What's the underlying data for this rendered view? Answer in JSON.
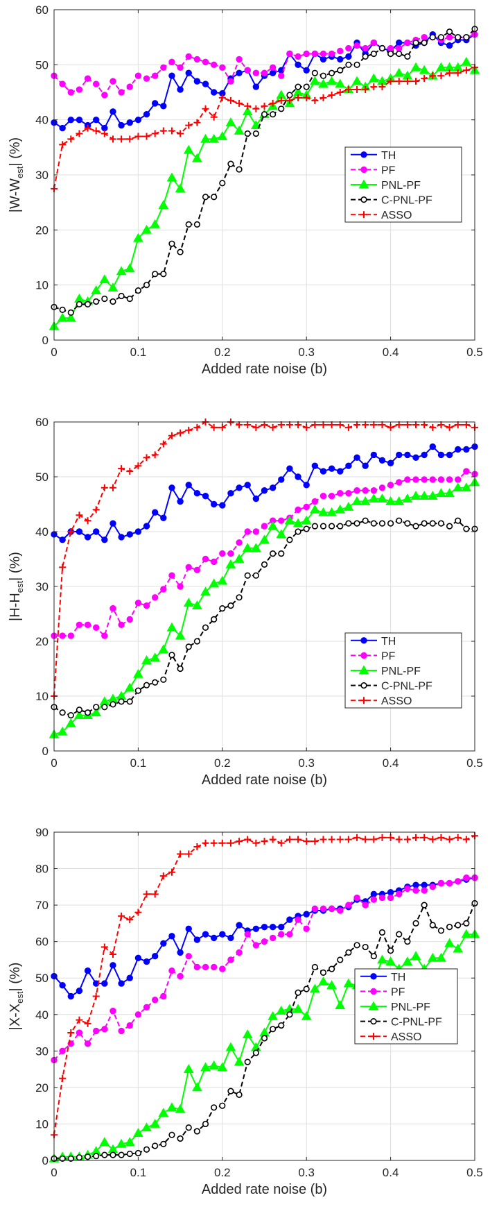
{
  "chart_data": [
    {
      "type": "line",
      "ylabel_main": "|W-W",
      "ylabel_sub": "est",
      "ylabel_tail": "| (%)",
      "xlabel": "Added rate noise (b)",
      "xlim": [
        0,
        0.5
      ],
      "ylim": [
        0,
        60
      ],
      "xticks": [
        "0",
        "0.1",
        "0.2",
        "0.3",
        "0.4",
        "0.5"
      ],
      "yticks": [
        "0",
        "10",
        "20",
        "30",
        "40",
        "50",
        "60"
      ],
      "legend_placement": "center-right",
      "grid": true,
      "x": [
        0,
        0.01,
        0.02,
        0.03,
        0.04,
        0.05,
        0.06,
        0.07,
        0.08,
        0.09,
        0.1,
        0.11,
        0.12,
        0.13,
        0.14,
        0.15,
        0.16,
        0.17,
        0.18,
        0.19,
        0.2,
        0.21,
        0.22,
        0.23,
        0.24,
        0.25,
        0.26,
        0.27,
        0.28,
        0.29,
        0.3,
        0.31,
        0.32,
        0.33,
        0.34,
        0.35,
        0.36,
        0.37,
        0.38,
        0.39,
        0.4,
        0.41,
        0.42,
        0.43,
        0.44,
        0.45,
        0.46,
        0.47,
        0.48,
        0.49,
        0.5
      ],
      "series": [
        {
          "name": "TH",
          "color": "#0000ff",
          "dash": "solid",
          "marker": "dot",
          "values": [
            39.5,
            38.5,
            40,
            40,
            39,
            40,
            38.5,
            41.5,
            39,
            39.5,
            40,
            41,
            43,
            42.5,
            48,
            45.5,
            48.5,
            47,
            46.5,
            45,
            44.8,
            47.5,
            48.5,
            49,
            46,
            48,
            48.5,
            49,
            52,
            50,
            49,
            52,
            51,
            51.5,
            51,
            51.5,
            54,
            52,
            54,
            53,
            52.5,
            54,
            54,
            53.5,
            54,
            55.5,
            54,
            53.5,
            54.5,
            54.5,
            55.5
          ]
        },
        {
          "name": "PF",
          "color": "#ff00ff",
          "dash": "dashed",
          "marker": "dot",
          "values": [
            48,
            46.5,
            45,
            45.5,
            47.5,
            46.5,
            44.5,
            47,
            45,
            46,
            48,
            47.5,
            48,
            49.5,
            50.5,
            49.5,
            51.5,
            51,
            50.5,
            50,
            49.5,
            47,
            51,
            49,
            48.5,
            48.5,
            49.5,
            48,
            52,
            51.5,
            52,
            52,
            52,
            52,
            52.5,
            53,
            53.5,
            53,
            54,
            53,
            53,
            53,
            54,
            54.5,
            55,
            55,
            54.5,
            55,
            55,
            55,
            55.5
          ]
        },
        {
          "name": "PNL-PF",
          "color": "#00ff00",
          "dash": "solid",
          "marker": "triangle",
          "values": [
            2.5,
            4,
            4,
            7.5,
            7,
            9,
            11,
            9.5,
            12.5,
            13,
            18.5,
            20,
            21,
            24.5,
            29.5,
            27.5,
            34.5,
            33,
            36.5,
            36.5,
            37,
            39.5,
            38,
            41.5,
            39,
            41,
            42.5,
            44.5,
            43,
            45,
            44.5,
            47,
            46.5,
            47,
            46.5,
            45.5,
            47,
            46,
            47.5,
            47,
            47.5,
            48.5,
            48,
            49.5,
            49,
            48,
            49.5,
            49.5,
            49.5,
            50.5,
            49
          ]
        },
        {
          "name": "C-PNL-PF",
          "color": "#000000",
          "dash": "dashed",
          "marker": "circle",
          "values": [
            6,
            5.5,
            5,
            6.5,
            6.5,
            7,
            7.5,
            7,
            8,
            7.5,
            9,
            10,
            12,
            12,
            17.5,
            16,
            21,
            21,
            26,
            26,
            28.5,
            32,
            31,
            37.5,
            37.5,
            41,
            41,
            42,
            44.5,
            46,
            46,
            48.5,
            48,
            48.5,
            49,
            50,
            50,
            51.5,
            52,
            53,
            52,
            52,
            51.5,
            54,
            54,
            55,
            55,
            56,
            55,
            55,
            56.5
          ]
        },
        {
          "name": "ASSO",
          "color": "#ff0000",
          "dash": "dashed",
          "marker": "plus",
          "values": [
            27.5,
            35.5,
            36.5,
            37.5,
            38.5,
            38,
            37.5,
            36.5,
            36.5,
            36.5,
            37,
            37,
            37.5,
            38,
            38,
            37.5,
            39,
            39.5,
            42,
            40.5,
            44,
            43.5,
            43,
            42.5,
            42,
            42.5,
            43,
            43.5,
            43.5,
            44,
            44,
            43.5,
            44,
            44.5,
            45,
            45.5,
            45.5,
            45.5,
            46,
            46,
            47,
            47,
            47,
            47,
            47.5,
            48,
            48,
            48.5,
            48.5,
            49,
            49.5
          ]
        }
      ]
    },
    {
      "type": "line",
      "ylabel_main": "|H-H",
      "ylabel_sub": "est",
      "ylabel_tail": "| (%)",
      "xlabel": "Added rate noise (b)",
      "xlim": [
        0,
        0.5
      ],
      "ylim": [
        0,
        60
      ],
      "xticks": [
        "0",
        "0.1",
        "0.2",
        "0.3",
        "0.4",
        "0.5"
      ],
      "yticks": [
        "0",
        "10",
        "20",
        "30",
        "40",
        "50",
        "60"
      ],
      "legend_placement": "lower-right",
      "grid": true,
      "x": [
        0,
        0.01,
        0.02,
        0.03,
        0.04,
        0.05,
        0.06,
        0.07,
        0.08,
        0.09,
        0.1,
        0.11,
        0.12,
        0.13,
        0.14,
        0.15,
        0.16,
        0.17,
        0.18,
        0.19,
        0.2,
        0.21,
        0.22,
        0.23,
        0.24,
        0.25,
        0.26,
        0.27,
        0.28,
        0.29,
        0.3,
        0.31,
        0.32,
        0.33,
        0.34,
        0.35,
        0.36,
        0.37,
        0.38,
        0.39,
        0.4,
        0.41,
        0.42,
        0.43,
        0.44,
        0.45,
        0.46,
        0.47,
        0.48,
        0.49,
        0.5
      ],
      "series": [
        {
          "name": "TH",
          "color": "#0000ff",
          "dash": "solid",
          "marker": "dot",
          "values": [
            39.5,
            38.5,
            40,
            40,
            39,
            40,
            38.5,
            41.5,
            39,
            39.5,
            40,
            41,
            43.5,
            42.5,
            48,
            45.5,
            48.5,
            47,
            46.5,
            45,
            44.8,
            47,
            48,
            48.5,
            46,
            47.5,
            48,
            49.5,
            51.5,
            50,
            48.5,
            52,
            51,
            51.5,
            51,
            52,
            53.5,
            52,
            54,
            53,
            52.5,
            54,
            54,
            53.5,
            54,
            55.5,
            54,
            54,
            55,
            55,
            55.5
          ]
        },
        {
          "name": "PF",
          "color": "#ff00ff",
          "dash": "dashed",
          "marker": "dot",
          "values": [
            21,
            21,
            21,
            23,
            23,
            22.5,
            21,
            26,
            23,
            24,
            27,
            26.5,
            28,
            29.5,
            32,
            30,
            33.5,
            33,
            35,
            34.5,
            36,
            36,
            38,
            40,
            40,
            41,
            42,
            42,
            42.5,
            44,
            44.5,
            45.5,
            46.5,
            46.5,
            47,
            47,
            47.5,
            47.5,
            47.5,
            48,
            48.5,
            49,
            49.5,
            49.5,
            49.5,
            49.5,
            49.5,
            49.5,
            49.5,
            51,
            50.5
          ]
        },
        {
          "name": "PNL-PF",
          "color": "#00ff00",
          "dash": "solid",
          "marker": "triangle",
          "values": [
            3,
            3.5,
            5,
            6.5,
            6.5,
            7,
            9,
            9.5,
            10,
            11.5,
            14,
            16.5,
            17,
            18.5,
            22.5,
            21,
            27,
            26.5,
            29,
            30.5,
            31,
            34,
            35,
            37,
            37,
            38.5,
            41,
            39.5,
            42,
            41.5,
            42,
            44,
            43.5,
            43.5,
            44,
            44.5,
            45.5,
            45.5,
            46,
            46,
            45.5,
            45.5,
            46,
            46.5,
            46.5,
            46.5,
            47,
            47,
            48,
            48,
            49
          ]
        },
        {
          "name": "C-PNL-PF",
          "color": "#000000",
          "dash": "dashed",
          "marker": "circle",
          "values": [
            8,
            7,
            6.5,
            7.5,
            7,
            8,
            8,
            8.5,
            9,
            9,
            11,
            12,
            12.5,
            13,
            17.5,
            15,
            19,
            20,
            22.5,
            24,
            26,
            26.5,
            28,
            32,
            32,
            34,
            36,
            36,
            38.5,
            40,
            40.5,
            41,
            41,
            41,
            41,
            41.5,
            41.5,
            42,
            41.5,
            41.5,
            41.5,
            42,
            41.5,
            41,
            41.5,
            41.5,
            41.5,
            41,
            42,
            40.5,
            40.5
          ]
        },
        {
          "name": " ASSO",
          "color": "#ff0000",
          "dash": "dashed",
          "marker": "plus",
          "values": [
            10,
            33.5,
            40,
            43,
            42,
            44,
            48,
            48,
            51.5,
            51,
            52,
            53.5,
            54,
            56,
            57.5,
            58,
            58.5,
            59,
            60,
            59,
            59,
            60,
            59.5,
            59.5,
            59,
            59.5,
            59,
            59.5,
            59.5,
            59.5,
            59,
            59.5,
            59.5,
            59.5,
            59.5,
            59,
            59.5,
            59.5,
            59.5,
            59.5,
            59,
            59.5,
            59.5,
            59.5,
            59.5,
            59,
            59.5,
            59,
            59.5,
            59.5,
            59
          ]
        }
      ]
    },
    {
      "type": "line",
      "ylabel_main": "|X-X",
      "ylabel_sub": "est",
      "ylabel_tail": "| (%)",
      "xlabel": "Added rate noise (b)",
      "xlim": [
        0,
        0.5
      ],
      "ylim": [
        0,
        90
      ],
      "xticks": [
        "0",
        "0.1",
        "0.2",
        "0.3",
        "0.4",
        "0.5"
      ],
      "yticks": [
        "0",
        "10",
        "20",
        "30",
        "40",
        "50",
        "60",
        "70",
        "80",
        "90"
      ],
      "legend_placement": "lower-right",
      "grid": true,
      "x": [
        0,
        0.01,
        0.02,
        0.03,
        0.04,
        0.05,
        0.06,
        0.07,
        0.08,
        0.09,
        0.1,
        0.11,
        0.12,
        0.13,
        0.14,
        0.15,
        0.16,
        0.17,
        0.18,
        0.19,
        0.2,
        0.21,
        0.22,
        0.23,
        0.24,
        0.25,
        0.26,
        0.27,
        0.28,
        0.29,
        0.3,
        0.31,
        0.32,
        0.33,
        0.34,
        0.35,
        0.36,
        0.37,
        0.38,
        0.39,
        0.4,
        0.41,
        0.42,
        0.43,
        0.44,
        0.45,
        0.46,
        0.47,
        0.48,
        0.49,
        0.5
      ],
      "series": [
        {
          "name": "TH",
          "color": "#0000ff",
          "dash": "solid",
          "marker": "dot",
          "values": [
            50.5,
            48,
            45,
            46.5,
            52,
            48.5,
            48.5,
            53.5,
            48.5,
            50,
            55.5,
            54.5,
            56,
            59.5,
            61.5,
            57,
            63.5,
            60.5,
            62,
            61,
            62,
            61,
            64.5,
            63,
            63.5,
            64,
            64,
            64,
            66,
            67,
            67.5,
            68.5,
            68.5,
            69,
            69,
            69.5,
            71.5,
            71,
            73,
            73,
            73.5,
            74,
            75,
            75.5,
            75.5,
            75.5,
            76,
            76,
            76.5,
            77,
            77.5
          ]
        },
        {
          "name": "PF",
          "color": "#ff00ff",
          "dash": "dashed",
          "marker": "dot",
          "values": [
            27.5,
            30,
            32,
            35,
            32,
            35.5,
            36,
            41,
            35.5,
            37,
            40,
            42,
            44,
            45,
            52,
            50.5,
            56,
            53,
            53,
            53,
            52.5,
            55,
            57,
            62,
            59,
            60,
            61,
            62,
            62,
            66,
            63.5,
            69,
            69,
            69,
            68.5,
            70,
            72,
            70,
            71.5,
            72,
            72,
            73,
            74.5,
            74,
            74,
            75,
            76,
            76,
            76.5,
            77.5,
            77.5
          ]
        },
        {
          "name": "PNL-PF",
          "color": "#00ff00",
          "dash": "solid",
          "marker": "triangle",
          "values": [
            0.5,
            1,
            1,
            1,
            1.5,
            2.5,
            5,
            3,
            4.5,
            5,
            7.5,
            9,
            10,
            13,
            14.5,
            14,
            25,
            20,
            25.5,
            26,
            25.5,
            31,
            27,
            34.5,
            31,
            35,
            39.5,
            41,
            41.5,
            41.5,
            39.5,
            47,
            49,
            48,
            42.5,
            48.5,
            48,
            48.5,
            49,
            55,
            54.5,
            52.5,
            54.5,
            56,
            52.5,
            55.5,
            55.5,
            59.5,
            58,
            62,
            62
          ]
        },
        {
          "name": "C-PNL-PF",
          "color": "#000000",
          "dash": "dashed",
          "marker": "circle",
          "values": [
            0.5,
            0.5,
            0.5,
            0.8,
            1,
            1.2,
            1.5,
            1.5,
            1.5,
            1.8,
            2,
            3,
            4,
            4.5,
            7,
            6,
            9,
            8,
            10,
            14.5,
            15,
            19,
            18,
            27,
            29.5,
            33.5,
            36,
            37,
            40,
            46,
            47,
            53,
            51.5,
            52.5,
            55,
            57,
            59,
            58.5,
            56,
            62.5,
            57.5,
            62,
            60,
            65,
            70,
            64.5,
            63,
            64,
            64.5,
            65,
            70.5
          ]
        },
        {
          "name": "ASSO",
          "color": "#ff0000",
          "dash": "dashed",
          "marker": "plus",
          "values": [
            7,
            22.5,
            35,
            38.5,
            37.5,
            45,
            58.5,
            56.5,
            67,
            66,
            68,
            73,
            73,
            78,
            79,
            84,
            84,
            86,
            87,
            87,
            87,
            87,
            87.5,
            88,
            87,
            87.5,
            88,
            87,
            88,
            88,
            87.5,
            87.5,
            88,
            88,
            88,
            88,
            88.5,
            88,
            88,
            88.5,
            88.5,
            88,
            88,
            88.5,
            88.5,
            88,
            88.5,
            88,
            88.5,
            88,
            89
          ]
        }
      ]
    }
  ]
}
